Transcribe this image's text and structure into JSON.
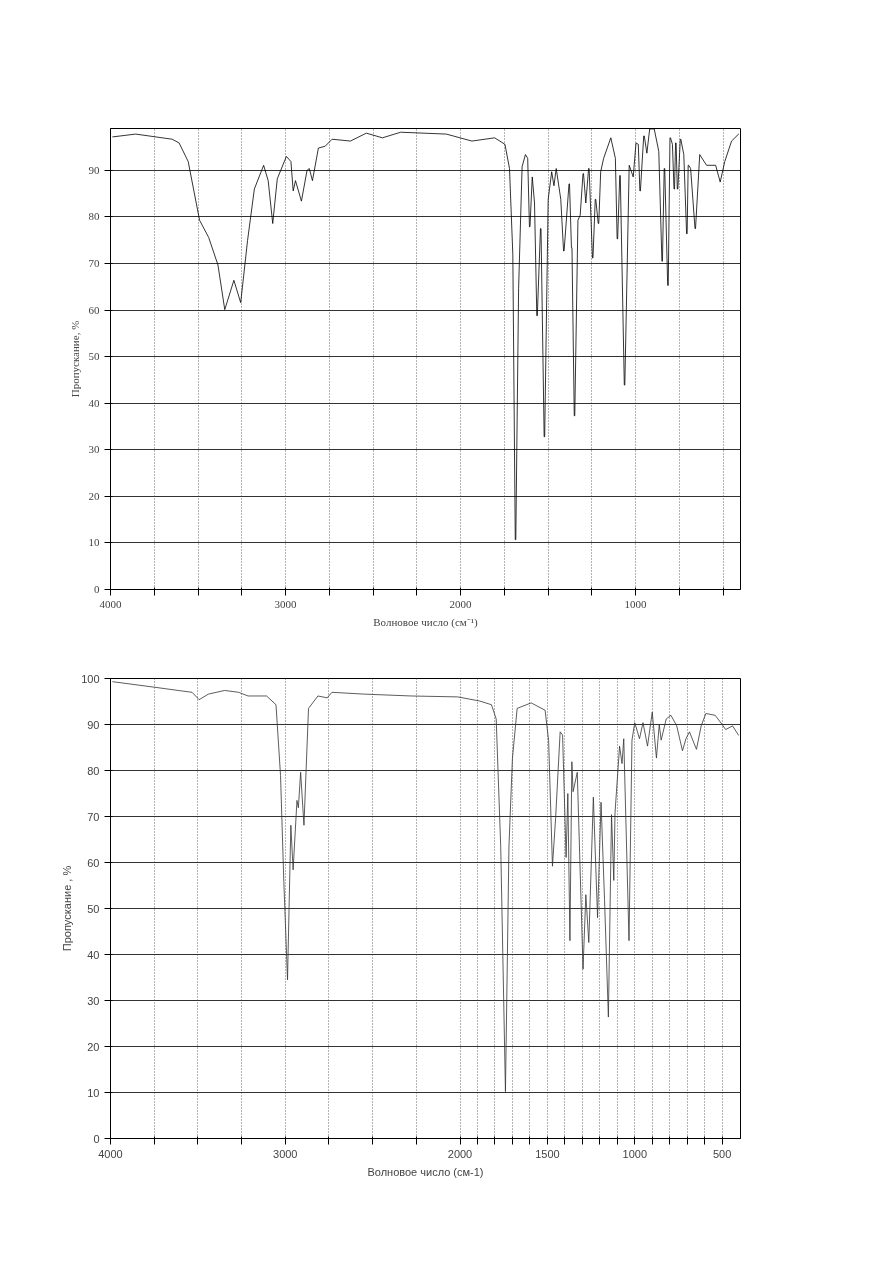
{
  "chart_data": [
    {
      "type": "line",
      "xlabel": "Волновое число (см⁻¹)",
      "ylabel": "Пропускание, %",
      "xlim": [
        4000,
        400
      ],
      "ylim": [
        0,
        99
      ],
      "xticks": [
        4000,
        {
          "value": 3750,
          "label": null
        },
        {
          "value": 3500,
          "label": null
        },
        {
          "value": 3250,
          "label": null
        },
        3000,
        {
          "value": 2750,
          "label": null
        },
        {
          "value": 2500,
          "label": null
        },
        {
          "value": 2250,
          "label": null
        },
        2000,
        {
          "value": 1750,
          "label": null
        },
        {
          "value": 1500,
          "label": null
        },
        {
          "value": 1250,
          "label": null
        },
        1000,
        {
          "value": 750,
          "label": null
        },
        {
          "value": 500,
          "label": null
        }
      ],
      "yticks": [
        0,
        10,
        20,
        30,
        40,
        50,
        60,
        70,
        80,
        90
      ],
      "grid": true,
      "marker": "none",
      "line_style": "solid",
      "series": [
        {
          "color": "#000000",
          "x": [
            3987,
            3856,
            3648,
            3608,
            3556,
            3491,
            3439,
            3386,
            3347,
            3295,
            3256,
            3217,
            3178,
            3125,
            3099,
            3073,
            3047,
            2995,
            2969,
            2956,
            2943,
            2909,
            2877,
            2864,
            2846,
            2812,
            2773,
            2734,
            2629,
            2538,
            2446,
            2342,
            2081,
            1935,
            1805,
            1746,
            1720,
            1701,
            1687,
            1684,
            1668,
            1648,
            1629,
            1616,
            1606,
            1603,
            1590,
            1577,
            1564,
            1561,
            1543,
            1540,
            1522,
            1519,
            1499,
            1479,
            1466,
            1453,
            1427,
            1411,
            1408,
            1380,
            1377,
            1366,
            1363,
            1350,
            1347,
            1329,
            1316,
            1300,
            1297,
            1284,
            1268,
            1265,
            1246,
            1243,
            1230,
            1227,
            1213,
            1210,
            1199,
            1182,
            1141,
            1115,
            1105,
            1102,
            1090,
            1087,
            1064,
            1061,
            1036,
            1013,
            997,
            984,
            975,
            972,
            953,
            950,
            935,
            919,
            893,
            867,
            849,
            846,
            836,
            833,
            816,
            813,
            803,
            800,
            789,
            780,
            777,
            771,
            768,
            761,
            758,
            744,
            741,
            724,
            708,
            705,
            699,
            696,
            685,
            660,
            657,
            633,
            594,
            542,
            516,
            490,
            451,
            411
          ],
          "values": [
            97.2,
            97.8,
            96.7,
            95.9,
            91.9,
            79.3,
            75.6,
            69.7,
            60.1,
            66.4,
            61.6,
            74.9,
            86.0,
            91.1,
            87.8,
            78.6,
            88.2,
            93.0,
            91.9,
            85.6,
            87.8,
            83.4,
            90.0,
            90.4,
            87.8,
            94.8,
            95.2,
            96.7,
            96.3,
            98.0,
            97.0,
            98.2,
            97.8,
            96.3,
            97.0,
            95.6,
            90.4,
            72.0,
            10.7,
            10.7,
            64.6,
            90.8,
            93.4,
            92.6,
            77.9,
            77.9,
            88.6,
            83.0,
            58.8,
            58.8,
            77.5,
            77.5,
            32.8,
            32.8,
            83.8,
            89.7,
            86.7,
            90.4,
            83.8,
            72.7,
            72.7,
            87.1,
            87.1,
            73.4,
            73.4,
            37.3,
            37.3,
            79.3,
            80.4,
            89.3,
            89.3,
            83.0,
            90.4,
            90.4,
            71.2,
            71.2,
            83.8,
            83.8,
            78.6,
            78.6,
            89.7,
            92.6,
            97.0,
            92.6,
            75.3,
            75.3,
            88.9,
            88.9,
            43.9,
            43.9,
            91.1,
            88.6,
            95.9,
            95.6,
            85.6,
            85.6,
            97.4,
            97.4,
            93.7,
            98.9,
            98.9,
            94.1,
            70.5,
            70.5,
            90.4,
            90.4,
            65.3,
            65.3,
            97.0,
            97.0,
            95.6,
            86.0,
            86.0,
            95.9,
            95.9,
            86.0,
            86.0,
            96.7,
            96.7,
            93.4,
            76.4,
            76.4,
            91.1,
            91.1,
            90.4,
            77.5,
            77.5,
            93.4,
            91.1,
            91.1,
            87.5,
            91.9,
            96.3,
            97.8
          ]
        }
      ]
    },
    {
      "type": "line",
      "xlabel": "Волновое число (см-1)",
      "ylabel": "Пропускание , %",
      "xlim": [
        4000,
        395
      ],
      "ylim": [
        0,
        100
      ],
      "xticks": [
        4000,
        {
          "value": 3750,
          "label": null
        },
        {
          "value": 3500,
          "label": null
        },
        {
          "value": 3250,
          "label": null
        },
        3000,
        {
          "value": 2750,
          "label": null
        },
        {
          "value": 2500,
          "label": null
        },
        {
          "value": 2250,
          "label": null
        },
        2000,
        {
          "value": 1900,
          "label": null
        },
        {
          "value": 1800,
          "label": null
        },
        {
          "value": 1700,
          "label": null
        },
        {
          "value": 1600,
          "label": null
        },
        1500,
        {
          "value": 1400,
          "label": null
        },
        {
          "value": 1300,
          "label": null
        },
        {
          "value": 1200,
          "label": null
        },
        {
          "value": 1100,
          "label": null
        },
        1000,
        {
          "value": 900,
          "label": null
        },
        {
          "value": 800,
          "label": null
        },
        {
          "value": 700,
          "label": null
        },
        {
          "value": 600,
          "label": null
        },
        500
      ],
      "yticks": [
        0,
        10,
        20,
        30,
        40,
        50,
        60,
        70,
        80,
        90,
        100
      ],
      "grid": true,
      "marker": "none",
      "line_style": "solid",
      "series": [
        {
          "color": "#333333",
          "x": [
            3987,
            3747,
            3613,
            3533,
            3493,
            3440,
            3347,
            3267,
            3213,
            3107,
            3053,
            3027,
            3008,
            2987,
            2968,
            2955,
            2933,
            2925,
            2912,
            2893,
            2867,
            2813,
            2760,
            2733,
            2547,
            2280,
            2013,
            1887,
            1820,
            1793,
            1767,
            1740,
            1720,
            1700,
            1673,
            1593,
            1513,
            1493,
            1471,
            1453,
            1427,
            1413,
            1393,
            1383,
            1371,
            1360,
            1353,
            1329,
            1296,
            1280,
            1263,
            1237,
            1213,
            1193,
            1173,
            1151,
            1133,
            1120,
            1113,
            1087,
            1073,
            1063,
            1033,
            1016,
            1000,
            973,
            953,
            927,
            900,
            876,
            860,
            849,
            820,
            793,
            760,
            727,
            707,
            687,
            647,
            620,
            593,
            540,
            500,
            480,
            440,
            407
          ],
          "values": [
            99.3,
            98.1,
            97.4,
            97.0,
            95.4,
            96.6,
            97.4,
            97.0,
            96.2,
            96.2,
            94.3,
            78.9,
            55.7,
            34.5,
            68.1,
            58.4,
            73.5,
            71.9,
            79.6,
            68.1,
            93.5,
            96.2,
            95.8,
            97.0,
            96.6,
            96.2,
            96.0,
            95.1,
            94.3,
            91.2,
            63.4,
            10.2,
            63.4,
            82.7,
            93.5,
            94.7,
            93.1,
            86.5,
            59.2,
            69.6,
            88.4,
            87.7,
            61.1,
            75.0,
            43.0,
            81.9,
            75.4,
            79.6,
            36.8,
            53.0,
            42.6,
            74.2,
            48.0,
            73.1,
            51.9,
            26.4,
            70.4,
            56.1,
            70.8,
            85.3,
            81.5,
            86.9,
            43.0,
            86.6,
            90.4,
            86.9,
            90.4,
            85.3,
            92.7,
            82.7,
            90.0,
            86.6,
            91.2,
            92.0,
            89.7,
            84.3,
            86.9,
            88.4,
            84.6,
            89.7,
            92.4,
            92.0,
            90.0,
            88.9,
            89.7,
            87.7
          ]
        }
      ]
    }
  ]
}
